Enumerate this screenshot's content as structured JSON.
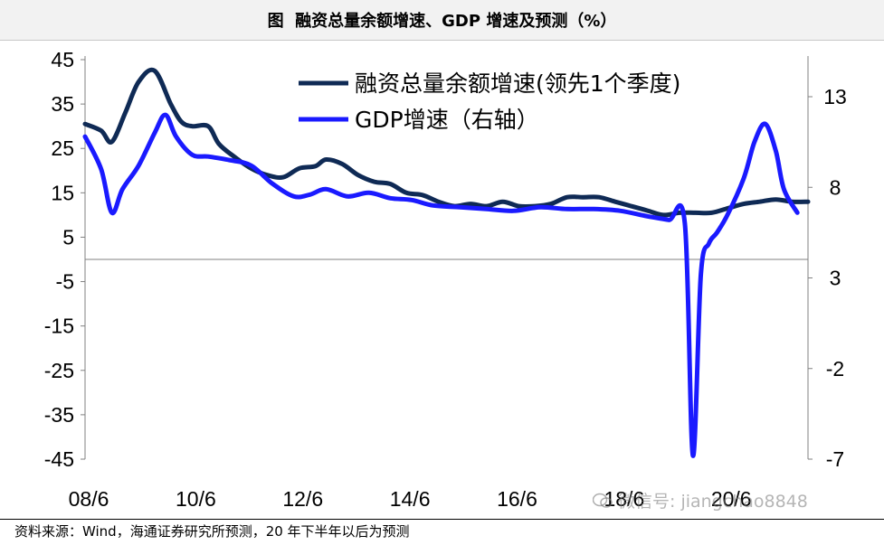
{
  "title": {
    "prefix": "图",
    "text": "融资总量余额增速、GDP 增速及预测（%）"
  },
  "source": "资料来源：Wind，海通证券研究所预测，20 年下半年以后为预测",
  "watermark": "微信号: jiangchao8848",
  "colors": {
    "tsf": "#0f2a55",
    "gdp": "#1a1aff"
  },
  "chart_data": {
    "type": "line",
    "x_ticks": [
      "08/6",
      "10/6",
      "12/6",
      "14/6",
      "16/6",
      "18/6",
      "20/6"
    ],
    "x_range": [
      2008.5,
      2022.0
    ],
    "y_left": {
      "ticks": [
        "45",
        "35",
        "25",
        "15",
        "5",
        "-5",
        "-15",
        "-25",
        "-35",
        "-45"
      ],
      "range": [
        -45,
        45
      ]
    },
    "y_right": {
      "ticks": [
        "13",
        "8",
        "3",
        "-2",
        "-7"
      ],
      "range": [
        -7,
        15
      ]
    },
    "series": [
      {
        "name": "融资总量余额增速(领先1个季度)",
        "axis": "left",
        "x": [
          2008.5,
          2008.8,
          2009.0,
          2009.25,
          2009.5,
          2009.8,
          2010.1,
          2010.3,
          2010.5,
          2010.8,
          2011.0,
          2011.3,
          2011.6,
          2011.9,
          2012.2,
          2012.5,
          2012.8,
          2013.0,
          2013.3,
          2013.6,
          2013.9,
          2014.2,
          2014.5,
          2014.8,
          2015.1,
          2015.4,
          2015.7,
          2016.0,
          2016.3,
          2016.6,
          2016.9,
          2017.2,
          2017.5,
          2017.8,
          2018.1,
          2018.4,
          2018.7,
          2019.0,
          2019.3,
          2019.6,
          2019.9,
          2020.2,
          2020.5,
          2020.8,
          2021.1,
          2021.4,
          2021.7,
          2022.0
        ],
        "y": [
          30.5,
          29,
          26.5,
          33,
          40,
          42.5,
          35,
          31,
          30,
          30,
          26,
          23,
          20.5,
          19,
          18.5,
          20.5,
          21,
          22.5,
          21.5,
          19,
          17.5,
          17,
          15,
          14.5,
          13,
          12,
          12.5,
          12,
          13,
          12,
          12,
          12.5,
          14,
          14,
          14,
          13,
          12,
          11,
          10,
          10.5,
          10.5,
          10.5,
          11.5,
          12.5,
          13,
          13.5,
          13,
          13
        ]
      },
      {
        "name": "GDP增速（右轴）",
        "axis": "right",
        "x": [
          2008.5,
          2008.8,
          2009.0,
          2009.2,
          2009.5,
          2009.8,
          2010.0,
          2010.2,
          2010.5,
          2010.8,
          2011.2,
          2011.6,
          2012.0,
          2012.4,
          2012.7,
          2013.0,
          2013.4,
          2013.8,
          2014.2,
          2014.6,
          2015.0,
          2015.5,
          2016.0,
          2016.5,
          2017.0,
          2017.5,
          2018.0,
          2018.5,
          2019.0,
          2019.4,
          2019.7,
          2019.85,
          2020.0,
          2020.15,
          2020.3,
          2020.5,
          2020.8,
          2021.0,
          2021.2,
          2021.4,
          2021.55,
          2021.8
        ],
        "y": [
          10.8,
          9.0,
          6.6,
          7.9,
          9.2,
          11.0,
          12.0,
          10.8,
          9.8,
          9.7,
          9.5,
          9.2,
          8.2,
          7.5,
          7.6,
          7.9,
          7.5,
          7.7,
          7.4,
          7.3,
          7.0,
          6.9,
          6.8,
          6.7,
          6.9,
          6.8,
          6.8,
          6.7,
          6.4,
          6.2,
          6.0,
          -6.8,
          3.2,
          4.9,
          5.5,
          6.5,
          8.5,
          10.5,
          11.5,
          10.0,
          7.9,
          6.6
        ]
      }
    ]
  }
}
